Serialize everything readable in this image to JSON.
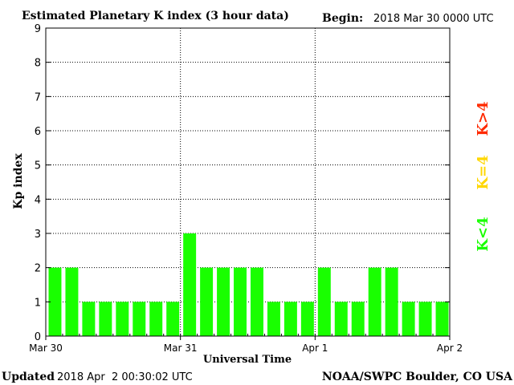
{
  "header": {
    "title": "Estimated Planetary K index (3 hour data)",
    "begin_label": "Begin:",
    "begin_value": "2018 Mar 30 0000 UTC"
  },
  "footer": {
    "updated_label": "Updated",
    "updated_value": "2018 Apr  2 00:30:02 UTC",
    "credit": "NOAA/SWPC Boulder, CO USA"
  },
  "legend": [
    {
      "label": "K>4",
      "color": "#ff2a00"
    },
    {
      "label": "K=4",
      "color": "#ffd700"
    },
    {
      "label": "K<4",
      "color": "#19ff00"
    }
  ],
  "chart_data": {
    "type": "bar",
    "title": "Estimated Planetary K index (3 hour data)",
    "xlabel": "Universal Time",
    "ylabel": "Kp index",
    "ylim": [
      0,
      9
    ],
    "yticks": [
      0,
      1,
      2,
      3,
      4,
      5,
      6,
      7,
      8,
      9
    ],
    "xtick_labels": [
      "Mar 30",
      "Mar 31",
      "Apr 1",
      "Apr 2"
    ],
    "interval_hours": 3,
    "grid": true,
    "bar_color": "#19ff00",
    "values": [
      2,
      2,
      1,
      1,
      1,
      1,
      1,
      1,
      3,
      2,
      2,
      2,
      2,
      1,
      1,
      1,
      2,
      1,
      1,
      2,
      2,
      1,
      1,
      1
    ]
  }
}
